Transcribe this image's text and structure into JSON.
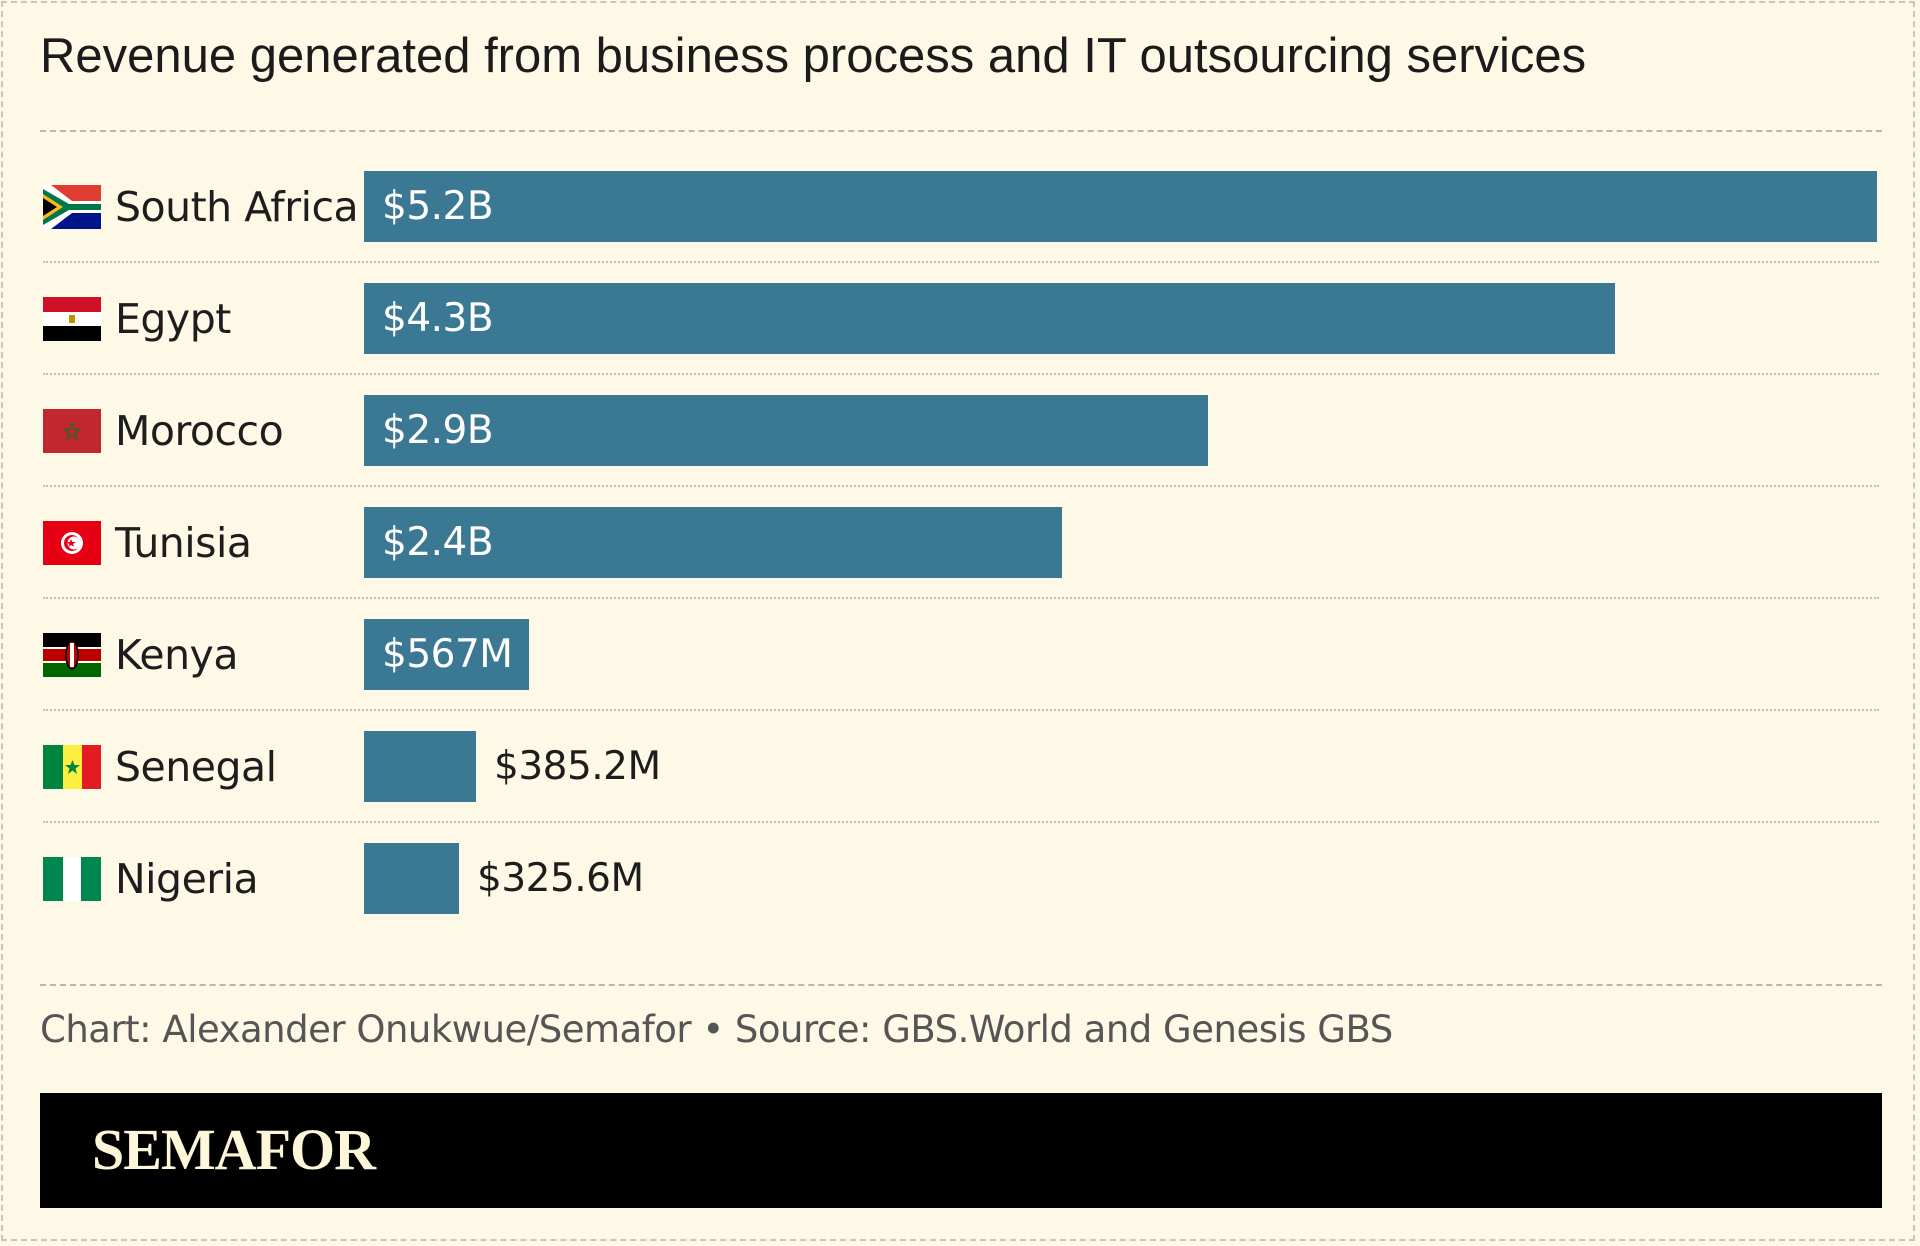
{
  "chart_data": {
    "type": "bar",
    "orientation": "horizontal",
    "title": "Revenue generated from business process and IT outsourcing services",
    "categories": [
      "South Africa",
      "Egypt",
      "Morocco",
      "Tunisia",
      "Kenya",
      "Senegal",
      "Nigeria"
    ],
    "values": [
      5200,
      4300,
      2900,
      2400,
      567,
      385.2,
      325.6
    ],
    "value_unit": "$M",
    "data_labels": [
      "$5.2B",
      "$4.3B",
      "$2.9B",
      "$2.4B",
      "$567M",
      "$385.2M",
      "$325.6M"
    ],
    "flag_icons": [
      "south-africa-flag-icon",
      "egypt-flag-icon",
      "morocco-flag-icon",
      "tunisia-flag-icon",
      "kenya-flag-icon",
      "senegal-flag-icon",
      "nigeria-flag-icon"
    ],
    "xlim": [
      0,
      5200
    ],
    "grid": false,
    "bar_color": "#3a7893"
  },
  "credit": "Chart: Alexander Onukwue/Semafor • Source: GBS.World and Genesis GBS",
  "brand": "SEMAFOR",
  "colors": {
    "background": "#fdf9e6",
    "bar": "#3a7893",
    "footer": "#000000"
  }
}
